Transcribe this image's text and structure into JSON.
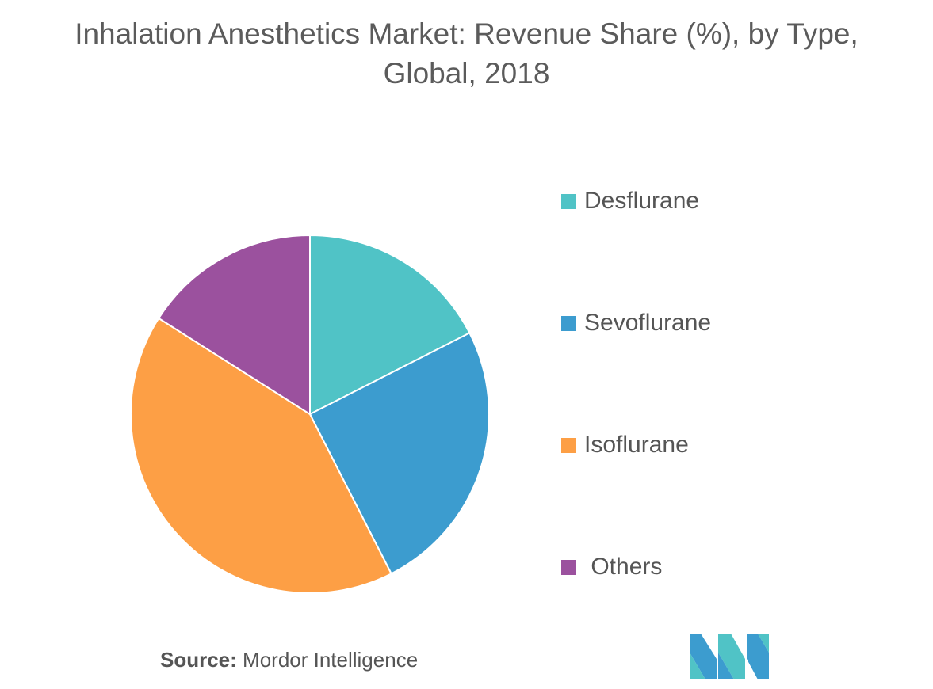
{
  "chart_data": {
    "type": "pie",
    "title": "Inhalation Anesthetics Market: Revenue Share (%), by Type, Global, 2018",
    "title_lines": [
      "Inhalation Anesthetics Market: Revenue Share (%), by Type,",
      "Global, 2018"
    ],
    "start_angle_deg": 0,
    "direction": "clockwise",
    "legend_position": "right",
    "slices": [
      {
        "label": "Desflurane",
        "value": 17.5,
        "color": "#50c3c6"
      },
      {
        "label": "Sevoflurane",
        "value": 25.0,
        "color": "#3c9ccf"
      },
      {
        "label": "Isoflurane",
        "value": 41.5,
        "color": "#fd9f45"
      },
      {
        "label": " Others",
        "value": 16.0,
        "color": "#9b519e"
      }
    ]
  },
  "source": {
    "prefix": "Source:",
    "text": " Mordor Intelligence"
  },
  "logo": {
    "name": "mordor-intelligence-logo",
    "colors": [
      "#3c9ccf",
      "#50c3c6"
    ]
  }
}
